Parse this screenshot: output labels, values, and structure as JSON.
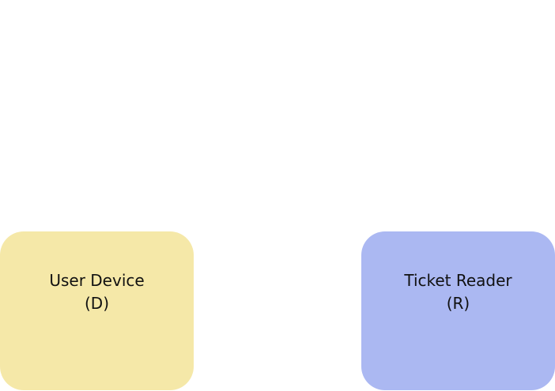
{
  "diagram": {
    "nodes": [
      {
        "id": "device",
        "label": "User Device",
        "sublabel": "(D)",
        "color": "#f5e8a8"
      },
      {
        "id": "reader",
        "label": "Ticket Reader",
        "sublabel": "(R)",
        "color": "#abb8f2"
      }
    ]
  }
}
